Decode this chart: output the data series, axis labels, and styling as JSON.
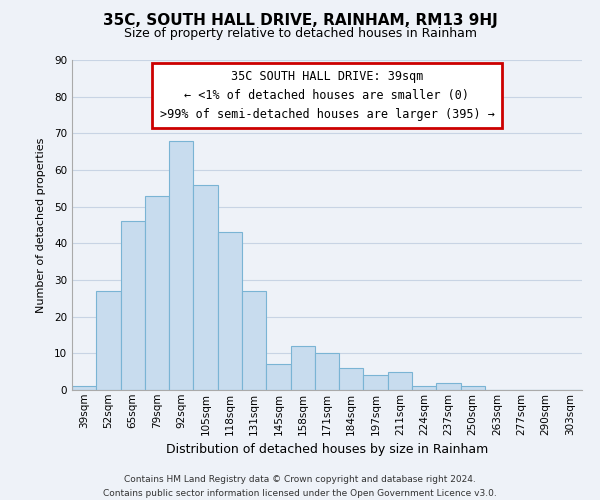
{
  "title": "35C, SOUTH HALL DRIVE, RAINHAM, RM13 9HJ",
  "subtitle": "Size of property relative to detached houses in Rainham",
  "xlabel": "Distribution of detached houses by size in Rainham",
  "ylabel": "Number of detached properties",
  "footer_lines": [
    "Contains HM Land Registry data © Crown copyright and database right 2024.",
    "Contains public sector information licensed under the Open Government Licence v3.0."
  ],
  "bar_labels": [
    "39sqm",
    "52sqm",
    "65sqm",
    "79sqm",
    "92sqm",
    "105sqm",
    "118sqm",
    "131sqm",
    "145sqm",
    "158sqm",
    "171sqm",
    "184sqm",
    "197sqm",
    "211sqm",
    "224sqm",
    "237sqm",
    "250sqm",
    "263sqm",
    "277sqm",
    "290sqm",
    "303sqm"
  ],
  "bar_values": [
    1,
    27,
    46,
    53,
    68,
    56,
    43,
    27,
    7,
    12,
    10,
    6,
    4,
    5,
    1,
    2,
    1,
    0,
    0,
    0,
    0
  ],
  "bar_color": "#c8dcee",
  "bar_edge_color": "#7ab4d4",
  "ylim": [
    0,
    90
  ],
  "yticks": [
    0,
    10,
    20,
    30,
    40,
    50,
    60,
    70,
    80,
    90
  ],
  "annotation_title": "35C SOUTH HALL DRIVE: 39sqm",
  "annotation_line1": "← <1% of detached houses are smaller (0)",
  "annotation_line2": ">99% of semi-detached houses are larger (395) →",
  "annotation_box_color": "#ffffff",
  "annotation_border_color": "#cc0000",
  "grid_color": "#c8d4e4",
  "background_color": "#eef2f8",
  "title_fontsize": 11,
  "subtitle_fontsize": 9,
  "xlabel_fontsize": 9,
  "ylabel_fontsize": 8,
  "tick_fontsize": 7.5,
  "footer_fontsize": 6.5,
  "annotation_fontsize": 8.5
}
